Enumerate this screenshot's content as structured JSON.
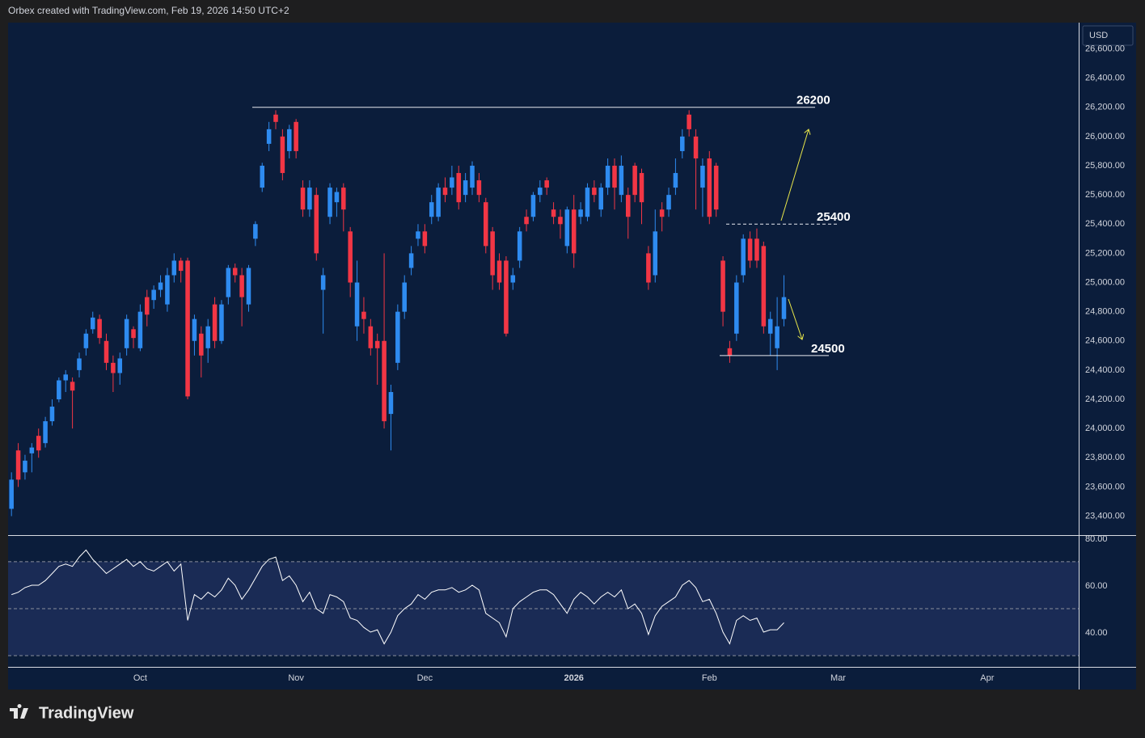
{
  "chart_data": [
    {
      "type": "candlestick",
      "header": "Orbex created with TradingView.com, Feb 19, 2026 14:50 UTC+2",
      "currency": "USD",
      "brand": "TradingView",
      "up_color": "#2e8bf0",
      "down_color": "#f23645",
      "categories": [
        null,
        null,
        null,
        null,
        null,
        null,
        null,
        null,
        null,
        null,
        null,
        null,
        null,
        null,
        null,
        null,
        null,
        null,
        null,
        "Oct",
        null,
        null,
        null,
        null,
        null,
        null,
        null,
        null,
        null,
        null,
        null,
        null,
        null,
        null,
        null,
        null,
        null,
        null,
        null,
        null,
        null,
        null,
        "Nov",
        null,
        null,
        null,
        null,
        null,
        null,
        null,
        null,
        null,
        null,
        null,
        null,
        null,
        null,
        null,
        null,
        null,
        null,
        "Dec",
        null,
        null,
        null,
        null,
        null,
        null,
        null,
        null,
        null,
        null,
        null,
        null,
        null,
        null,
        null,
        null,
        null,
        null,
        null,
        null,
        null,
        "2026",
        null,
        null,
        null,
        null,
        null,
        null,
        null,
        null,
        null,
        null,
        null,
        null,
        null,
        null,
        null,
        null,
        null,
        null,
        null,
        "Feb",
        null,
        null,
        null,
        null,
        null,
        null,
        null,
        null,
        null,
        null,
        null,
        null,
        null,
        null,
        null,
        null,
        null,
        null,
        "Mar",
        null,
        null,
        null,
        null,
        null,
        null,
        null,
        null,
        null,
        null,
        null,
        null,
        null,
        null,
        null,
        null,
        null,
        null,
        null,
        null,
        null,
        "Apr",
        null,
        null,
        null,
        null,
        null,
        null,
        null,
        null,
        null,
        null,
        null,
        null,
        null
      ],
      "open": [
        23450,
        23850,
        23700,
        23830,
        23950,
        23900,
        24050,
        24200,
        24330,
        24320,
        24400,
        24550,
        24680,
        24750,
        24600,
        24450,
        24380,
        24550,
        24680,
        24550,
        24900,
        24880,
        24950,
        24850,
        25050,
        25150,
        25150,
        24600,
        24650,
        24550,
        24850,
        24600,
        24900,
        25100,
        25050,
        24850,
        25300,
        25650,
        25950,
        26150,
        26000,
        25900,
        26100,
        25650,
        25500,
        25600,
        24950,
        25450,
        25550,
        25650,
        25350,
        24700,
        24800,
        24700,
        24600,
        24600,
        24100,
        24450,
        24800,
        25100,
        25300,
        25350,
        25450,
        25450,
        25650,
        25650,
        25750,
        25600,
        25650,
        25700,
        25550,
        25350,
        25150,
        25150,
        25000,
        25150,
        25450,
        25450,
        25600,
        25700,
        25500,
        25450,
        25250,
        25500,
        25450,
        25450,
        25650,
        25500,
        25650,
        25800,
        25600,
        25600,
        25800,
        25750,
        25200,
        25050,
        25500,
        25500,
        25650,
        25900,
        26150,
        26000,
        25650,
        25850,
        25800,
        25150,
        24550,
        24650,
        25050,
        25300,
        25300,
        25250,
        24650,
        24550,
        24750,
        null,
        null,
        null,
        null,
        null,
        null,
        null,
        null,
        null,
        null,
        null,
        null,
        null,
        null,
        null,
        null,
        null,
        null,
        null,
        null,
        null,
        null,
        null,
        null,
        null,
        null,
        null,
        null,
        null,
        null,
        null,
        null,
        null,
        null,
        null,
        null,
        null,
        null,
        null,
        null,
        null,
        null,
        null
      ],
      "high": [
        23700,
        23900,
        23820,
        23900,
        24000,
        24080,
        24200,
        24350,
        24400,
        24350,
        24520,
        24680,
        24800,
        24780,
        24650,
        24500,
        24520,
        24780,
        24700,
        24850,
        24950,
        24980,
        25050,
        25100,
        25200,
        25170,
        25170,
        24780,
        24700,
        24750,
        24900,
        24880,
        25120,
        25130,
        25100,
        25120,
        25420,
        25820,
        26100,
        26180,
        26050,
        26080,
        26120,
        25700,
        25700,
        25650,
        25100,
        25680,
        25650,
        25680,
        25380,
        25150,
        24900,
        24750,
        24650,
        25200,
        24300,
        24850,
        25050,
        25250,
        25400,
        25400,
        25600,
        25680,
        25720,
        25800,
        25800,
        25750,
        25830,
        25750,
        25580,
        25380,
        25200,
        25180,
        25100,
        25380,
        25500,
        25620,
        25700,
        25720,
        25550,
        25500,
        25520,
        25600,
        25550,
        25680,
        25700,
        25680,
        25850,
        25850,
        25870,
        25650,
        25820,
        25780,
        25250,
        25500,
        25550,
        25650,
        25850,
        26050,
        26180,
        26050,
        25850,
        25900,
        25820,
        25180,
        24600,
        25050,
        25330,
        25350,
        25370,
        25280,
        24800,
        24900,
        25050,
        null,
        null,
        null,
        null,
        null,
        null,
        null,
        null,
        null,
        null,
        null,
        null,
        null,
        null,
        null,
        null,
        null,
        null,
        null,
        null,
        null,
        null,
        null,
        null,
        null,
        null,
        null,
        null,
        null,
        null,
        null,
        null,
        null,
        null,
        null,
        null,
        null,
        null,
        null,
        null,
        null,
        null,
        null
      ],
      "low": [
        23400,
        23600,
        23650,
        23700,
        23800,
        23870,
        24020,
        24180,
        24250,
        24000,
        24350,
        24500,
        24650,
        24580,
        24400,
        24250,
        24300,
        24500,
        24550,
        24530,
        24700,
        24820,
        24900,
        24800,
        25000,
        25000,
        24200,
        24500,
        24350,
        24450,
        24550,
        24580,
        24850,
        25000,
        24700,
        24800,
        25250,
        25620,
        25900,
        26050,
        25700,
        25850,
        25850,
        25450,
        25450,
        25150,
        24650,
        25400,
        25450,
        25350,
        24900,
        24600,
        24650,
        24500,
        24300,
        24000,
        23850,
        24400,
        24750,
        25050,
        25250,
        25200,
        25400,
        25420,
        25550,
        25600,
        25500,
        25550,
        25600,
        25550,
        25200,
        24950,
        24950,
        24630,
        24950,
        25100,
        25350,
        25420,
        25550,
        25600,
        25400,
        25300,
        25200,
        25100,
        25400,
        25420,
        25550,
        25450,
        25600,
        25500,
        25550,
        25300,
        25550,
        25400,
        24950,
        25000,
        25350,
        25450,
        25600,
        25850,
        26000,
        25500,
        25450,
        25400,
        25450,
        24700,
        24450,
        24600,
        25000,
        25100,
        25100,
        24650,
        24500,
        24400,
        24700,
        null,
        null,
        null,
        null,
        null,
        null,
        null,
        null,
        null,
        null,
        null,
        null,
        null,
        null,
        null,
        null,
        null,
        null,
        null,
        null,
        null,
        null,
        null,
        null,
        null,
        null,
        null,
        null,
        null,
        null,
        null,
        null,
        null,
        null,
        null,
        null,
        null,
        null,
        null,
        null,
        null,
        null,
        null
      ],
      "close": [
        23650,
        23650,
        23780,
        23870,
        23850,
        24050,
        24150,
        24330,
        24370,
        24260,
        24480,
        24650,
        24760,
        24620,
        24450,
        24380,
        24480,
        24750,
        24620,
        24800,
        24780,
        24950,
        25000,
        25050,
        25150,
        25080,
        24220,
        24750,
        24500,
        24700,
        24600,
        24850,
        25100,
        25050,
        24900,
        25100,
        25400,
        25800,
        26050,
        26100,
        25750,
        26050,
        25900,
        25500,
        25650,
        25200,
        25050,
        25650,
        25620,
        25500,
        25000,
        25000,
        24750,
        24550,
        24550,
        24050,
        24250,
        24800,
        25000,
        25200,
        25350,
        25250,
        25550,
        25650,
        25600,
        25720,
        25550,
        25700,
        25800,
        25600,
        25250,
        25050,
        25000,
        24650,
        25050,
        25350,
        25400,
        25600,
        25650,
        25650,
        25450,
        25400,
        25500,
        25200,
        25500,
        25650,
        25600,
        25650,
        25800,
        25650,
        25800,
        25450,
        25600,
        25550,
        25000,
        25350,
        25450,
        25600,
        25750,
        26000,
        26050,
        25850,
        25800,
        25450,
        25500,
        24800,
        24500,
        25000,
        25300,
        25150,
        25150,
        24700,
        24750,
        24700,
        24900,
        null,
        null,
        null,
        null,
        null,
        null,
        null,
        null,
        null,
        null,
        null,
        null,
        null,
        null,
        null,
        null,
        null,
        null,
        null,
        null,
        null,
        null,
        null,
        null,
        null,
        null,
        null,
        null,
        null,
        null,
        null,
        null,
        null,
        null,
        null,
        null,
        null,
        null,
        null,
        null,
        null,
        null,
        null
      ],
      "ylim": [
        23270,
        26780
      ],
      "yticks": [
        {
          "value": 23400,
          "label": "23,400.00"
        },
        {
          "value": 23600,
          "label": "23,600.00"
        },
        {
          "value": 23800,
          "label": "23,800.00"
        },
        {
          "value": 24000,
          "label": "24,000.00"
        },
        {
          "value": 24200,
          "label": "24,200.00"
        },
        {
          "value": 24400,
          "label": "24,400.00"
        },
        {
          "value": 24600,
          "label": "24,600.00"
        },
        {
          "value": 24800,
          "label": "24,800.00"
        },
        {
          "value": 25000,
          "label": "25,000.00"
        },
        {
          "value": 25200,
          "label": "25,200.00"
        },
        {
          "value": 25400,
          "label": "25,400.00"
        },
        {
          "value": 25600,
          "label": "25,600.00"
        },
        {
          "value": 25800,
          "label": "25,800.00"
        },
        {
          "value": 26000,
          "label": "26,000.00"
        },
        {
          "value": 26200,
          "label": "26,200.00"
        },
        {
          "value": 26400,
          "label": "26,400.00"
        },
        {
          "value": 26600,
          "label": "26,600.00"
        }
      ],
      "levels": [
        26200,
        25400,
        24500
      ],
      "grid": false
    },
    {
      "type": "line",
      "color": "#ffffff",
      "band_color": "#1a2b55",
      "values": [
        56,
        57,
        59,
        60,
        60,
        62,
        65,
        68,
        69,
        68,
        72,
        75,
        71,
        68,
        65,
        67,
        69,
        71,
        68,
        70,
        67,
        66,
        68,
        70,
        66,
        69,
        45,
        56,
        54,
        57,
        55,
        58,
        63,
        60,
        54,
        58,
        63,
        68,
        71,
        72,
        62,
        64,
        60,
        53,
        57,
        50,
        48,
        56,
        55,
        53,
        46,
        45,
        42,
        40,
        41,
        35,
        40,
        47,
        50,
        52,
        56,
        54,
        57,
        58,
        58,
        59,
        57,
        58,
        60,
        58,
        48,
        46,
        44,
        38,
        50,
        53,
        55,
        57,
        58,
        58,
        56,
        52,
        48,
        54,
        57,
        55,
        52,
        55,
        57,
        55,
        58,
        50,
        52,
        48,
        39,
        47,
        51,
        53,
        55,
        60,
        62,
        59,
        53,
        54,
        48,
        40,
        35,
        45,
        47,
        45,
        46,
        40,
        41,
        41,
        44
      ],
      "ylim": [
        25.2,
        81
      ],
      "yticks": [
        {
          "value": 80,
          "label": "80.00"
        },
        {
          "value": 60,
          "label": "60.00"
        },
        {
          "value": 40,
          "label": "40.00"
        }
      ],
      "levels": [
        70,
        50,
        30
      ]
    }
  ]
}
